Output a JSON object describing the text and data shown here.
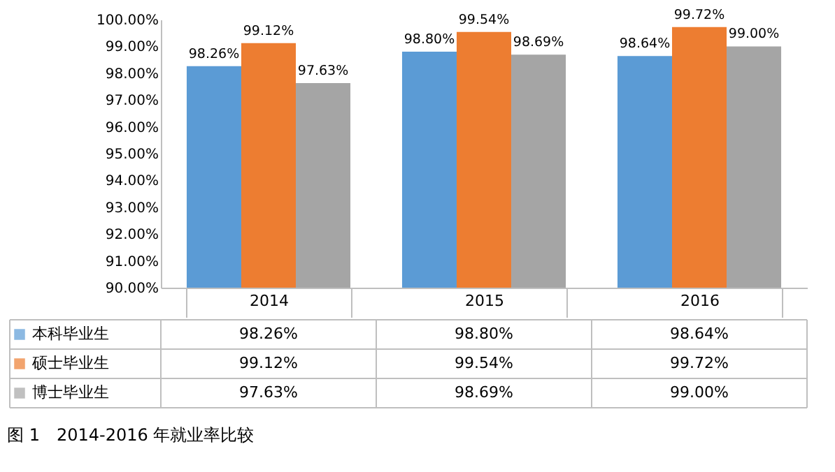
{
  "chart_data": {
    "type": "bar",
    "title": "图 1　2014-2016 年就业率比较",
    "categories": [
      "2014",
      "2015",
      "2016"
    ],
    "series": [
      {
        "name": "本科毕业生",
        "color": "#5b9bd5",
        "values": [
          98.26,
          98.8,
          98.64
        ],
        "value_labels": [
          "98.26%",
          "98.80%",
          "98.64%"
        ]
      },
      {
        "name": "硕士毕业生",
        "color": "#ed7d31",
        "values": [
          99.12,
          99.54,
          99.72
        ],
        "value_labels": [
          "99.12%",
          "99.54%",
          "99.72%"
        ]
      },
      {
        "name": "博士毕业生",
        "color": "#a5a5a5",
        "values": [
          97.63,
          98.69,
          99.0
        ],
        "value_labels": [
          "97.63%",
          "98.69%",
          "99.00%"
        ]
      }
    ],
    "ylim": [
      90,
      100
    ],
    "yticks": [
      {
        "value": 90,
        "label": "90.00%"
      },
      {
        "value": 91,
        "label": "91.00%"
      },
      {
        "value": 92,
        "label": "92.00%"
      },
      {
        "value": 93,
        "label": "93.00%"
      },
      {
        "value": 94,
        "label": "94.00%"
      },
      {
        "value": 95,
        "label": "95.00%"
      },
      {
        "value": 96,
        "label": "96.00%"
      },
      {
        "value": 97,
        "label": "97.00%"
      },
      {
        "value": 98,
        "label": "98.00%"
      },
      {
        "value": 99,
        "label": "99.00%"
      },
      {
        "value": 100,
        "label": "100.00%"
      }
    ],
    "legend": "bottom",
    "grid": false
  }
}
